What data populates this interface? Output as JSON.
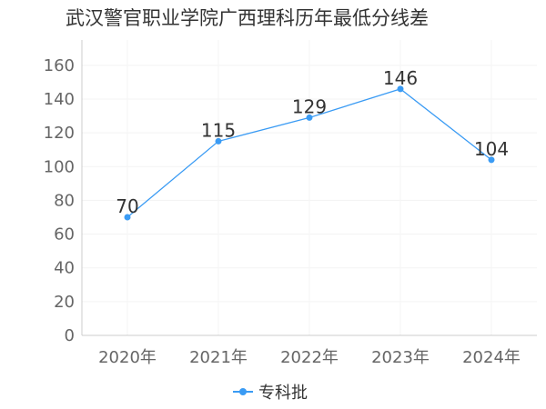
{
  "chart_data": {
    "type": "line",
    "title": "武汉警官职业学院广西理科历年最低分线差",
    "categories": [
      "2020年",
      "2021年",
      "2022年",
      "2023年",
      "2024年"
    ],
    "series": [
      {
        "name": "专科批",
        "values": [
          70,
          115,
          129,
          146,
          104
        ],
        "color": "#3a9bf4"
      }
    ],
    "y_ticks": [
      0,
      20,
      40,
      60,
      80,
      100,
      120,
      140,
      160
    ],
    "ylim": [
      0,
      175
    ],
    "grid": true,
    "legend_position": "bottom"
  }
}
